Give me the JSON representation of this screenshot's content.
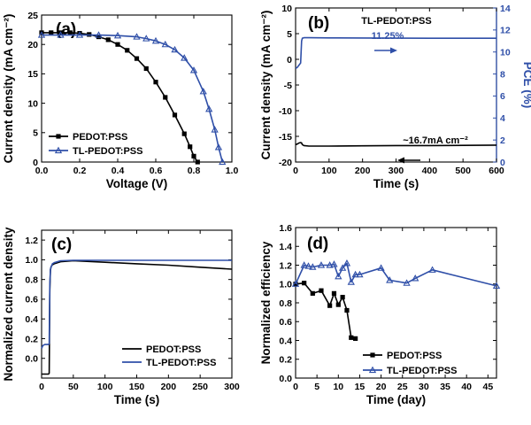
{
  "chart_data": [
    {
      "panel_label": "(a)",
      "type": "line",
      "xlabel": "Voltage (V)",
      "ylabel": "Current density (mA cm⁻²)",
      "xlim": [
        0.0,
        1.0
      ],
      "ylim": [
        0,
        25
      ],
      "xticks": [
        0.0,
        0.2,
        0.4,
        0.6,
        0.8,
        1.0
      ],
      "yticks": [
        0,
        5,
        10,
        15,
        20,
        25
      ],
      "legend_position": "bottom-left",
      "series": [
        {
          "name": "PEDOT:PSS",
          "color": "#000000",
          "marker": "square",
          "x": [
            0.0,
            0.05,
            0.1,
            0.15,
            0.2,
            0.25,
            0.3,
            0.35,
            0.4,
            0.45,
            0.5,
            0.55,
            0.6,
            0.65,
            0.7,
            0.75,
            0.78,
            0.8,
            0.82
          ],
          "y": [
            22.0,
            22.0,
            22.0,
            22.0,
            21.9,
            21.7,
            21.3,
            20.8,
            20.0,
            19.0,
            17.6,
            15.9,
            13.6,
            11.0,
            8.0,
            4.8,
            2.6,
            1.0,
            0.0
          ]
        },
        {
          "name": "TL-PEDOT:PSS",
          "color": "#2f4fa8",
          "marker": "triangle",
          "x": [
            0.0,
            0.1,
            0.2,
            0.3,
            0.4,
            0.5,
            0.55,
            0.6,
            0.65,
            0.7,
            0.75,
            0.8,
            0.85,
            0.88,
            0.91,
            0.93,
            0.95
          ],
          "y": [
            21.6,
            21.6,
            21.6,
            21.6,
            21.5,
            21.3,
            21.0,
            20.6,
            20.0,
            19.1,
            17.7,
            15.6,
            12.0,
            9.0,
            5.5,
            2.5,
            0.0
          ]
        }
      ]
    },
    {
      "panel_label": "(b)",
      "type": "line",
      "title_text": "TL-PEDOT:PSS",
      "xlabel": "Time (s)",
      "ylabel": "Current density (mA cm⁻²)",
      "y2label": "PCE (%)",
      "xlim": [
        0,
        600
      ],
      "ylim": [
        -20,
        10
      ],
      "y2lim": [
        0,
        14
      ],
      "xticks": [
        0,
        100,
        200,
        300,
        400,
        500,
        600
      ],
      "yticks": [
        -20,
        -15,
        -10,
        -5,
        0,
        5,
        10
      ],
      "y2ticks": [
        0,
        2,
        4,
        6,
        8,
        10,
        12,
        14
      ],
      "annotations": [
        "11.25%",
        "~16.7mA cm⁻²"
      ],
      "series": [
        {
          "name": "PCE",
          "axis": "right",
          "color": "#2f4fa8",
          "x": [
            0,
            5,
            10,
            15,
            18,
            20,
            25,
            40,
            100,
            200,
            300,
            400,
            500,
            600
          ],
          "y": [
            8.5,
            8.6,
            8.8,
            9.0,
            11.0,
            11.25,
            11.3,
            11.3,
            11.28,
            11.27,
            11.26,
            11.25,
            11.25,
            11.25
          ]
        },
        {
          "name": "Current density",
          "axis": "left",
          "color": "#000000",
          "x": [
            0,
            5,
            10,
            15,
            18,
            20,
            25,
            40,
            100,
            200,
            300,
            400,
            500,
            600
          ],
          "y": [
            -16.6,
            -16.5,
            -16.3,
            -16.2,
            -16.3,
            -16.6,
            -16.8,
            -16.9,
            -16.9,
            -16.85,
            -16.8,
            -16.8,
            -16.75,
            -16.7
          ]
        }
      ]
    },
    {
      "panel_label": "(c)",
      "type": "line",
      "xlabel": "Time (s)",
      "ylabel": "Normalized current density",
      "xlim": [
        0,
        300
      ],
      "ylim": [
        -0.2,
        1.3
      ],
      "xticks": [
        0,
        50,
        100,
        150,
        200,
        250,
        300
      ],
      "yticks": [
        0.0,
        0.2,
        0.4,
        0.6,
        0.8,
        1.0,
        1.2
      ],
      "legend_position": "bottom-right",
      "series": [
        {
          "name": "PEDOT:PSS",
          "color": "#000000",
          "x": [
            0,
            3,
            6,
            9,
            10,
            11,
            12,
            13,
            14,
            15,
            16,
            17,
            20,
            30,
            50,
            100,
            150,
            200,
            250,
            300
          ],
          "y": [
            -0.16,
            -0.16,
            -0.16,
            -0.16,
            -0.16,
            -0.16,
            -0.15,
            0.7,
            0.9,
            0.93,
            0.94,
            0.95,
            0.96,
            0.98,
            0.99,
            0.975,
            0.96,
            0.945,
            0.925,
            0.905
          ]
        },
        {
          "name": "TL-PEDOT:PSS",
          "color": "#2f4fa8",
          "x": [
            0,
            2,
            5,
            8,
            10,
            11,
            12,
            13,
            14,
            15,
            16,
            17,
            20,
            30,
            50,
            100,
            150,
            200,
            250,
            300
          ],
          "y": [
            0.1,
            0.13,
            0.14,
            0.14,
            0.14,
            0.14,
            0.15,
            0.75,
            0.9,
            0.93,
            0.94,
            0.96,
            0.97,
            0.99,
            0.995,
            0.995,
            0.995,
            0.995,
            0.995,
            0.995
          ]
        }
      ]
    },
    {
      "panel_label": "(d)",
      "type": "line",
      "xlabel": "Time (day)",
      "ylabel": "Normalized efficiency",
      "xlim": [
        0,
        47
      ],
      "ylim": [
        0,
        1.6
      ],
      "xticks": [
        0,
        5,
        10,
        15,
        20,
        25,
        30,
        35,
        40,
        45
      ],
      "yticks": [
        0.0,
        0.2,
        0.4,
        0.6,
        0.8,
        1.0,
        1.2,
        1.4,
        1.6
      ],
      "legend_position": "bottom-right",
      "series": [
        {
          "name": "PEDOT:PSS",
          "color": "#000000",
          "marker": "square",
          "x": [
            0,
            2,
            4,
            6,
            8,
            9,
            10,
            11,
            12,
            13,
            14
          ],
          "y": [
            1.0,
            1.01,
            0.9,
            0.93,
            0.77,
            0.9,
            0.78,
            0.86,
            0.72,
            0.43,
            0.42
          ]
        },
        {
          "name": "TL-PEDOT:PSS",
          "color": "#2f4fa8",
          "marker": "triangle",
          "x": [
            0,
            2,
            3,
            4,
            6,
            8,
            9,
            10,
            11,
            12,
            13,
            14,
            15,
            20,
            22,
            26,
            28,
            32,
            47
          ],
          "y": [
            1.0,
            1.2,
            1.19,
            1.18,
            1.2,
            1.2,
            1.21,
            1.08,
            1.17,
            1.22,
            1.02,
            1.1,
            1.1,
            1.17,
            1.04,
            1.01,
            1.06,
            1.15,
            0.98
          ]
        }
      ]
    }
  ]
}
